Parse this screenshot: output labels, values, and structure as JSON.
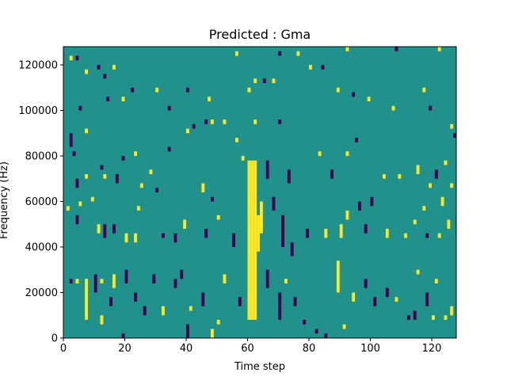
{
  "chart_data": {
    "type": "heatmap",
    "title": "Predicted : Gma",
    "xlabel": "Time step",
    "ylabel": "Frequency (Hz)",
    "xlim": [
      0,
      128
    ],
    "ylim": [
      0,
      128000
    ],
    "x_ticks": [
      0,
      20,
      40,
      60,
      80,
      100,
      120
    ],
    "x_tick_labels": [
      "0",
      "20",
      "40",
      "60",
      "80",
      "100",
      "120"
    ],
    "y_ticks": [
      0,
      20000,
      40000,
      60000,
      80000,
      100000,
      120000
    ],
    "y_tick_labels": [
      "0",
      "20000",
      "40000",
      "60000",
      "80000",
      "100000",
      "120000"
    ],
    "grid": false,
    "colormap": "viridis",
    "background_value": 0,
    "colors": {
      "background": "#21918c",
      "high": "#fde725",
      "low": "#440154"
    },
    "cell_size": {
      "time_steps": 1,
      "frequency_hz": 2000
    },
    "cells": [
      {
        "t": 60,
        "f": 8000,
        "f_end": 78000,
        "v": 1
      },
      {
        "t": 61,
        "f": 8000,
        "f_end": 78000,
        "v": 1
      },
      {
        "t": 62,
        "f": 8000,
        "f_end": 78000,
        "v": 1
      },
      {
        "t": 63,
        "f": 38000,
        "f_end": 54000,
        "v": 1
      },
      {
        "t": 64,
        "f": 46000,
        "f_end": 60000,
        "v": 1
      },
      {
        "t": 66,
        "f": 70000,
        "f_end": 78000,
        "v": -1
      },
      {
        "t": 66,
        "f": 22000,
        "f_end": 30000,
        "v": -1
      },
      {
        "t": 68,
        "f": 56000,
        "f_end": 62000,
        "v": -1
      },
      {
        "t": 70,
        "f": 14000,
        "f_end": 20000,
        "v": -1
      },
      {
        "t": 71,
        "f": 40000,
        "f_end": 54000,
        "v": -1
      },
      {
        "t": 89,
        "f": 20000,
        "f_end": 34000,
        "v": 1
      },
      {
        "t": 2,
        "f": 84000,
        "f_end": 90000,
        "v": -1
      },
      {
        "t": 2,
        "f": 122000,
        "f_end": 124000,
        "v": 1
      },
      {
        "t": 4,
        "f": 122000,
        "f_end": 124000,
        "v": -1
      },
      {
        "t": 7,
        "f": 116000,
        "f_end": 118000,
        "v": 1
      },
      {
        "t": 11,
        "f": 118000,
        "f_end": 120000,
        "v": -1
      },
      {
        "t": 16,
        "f": 118000,
        "f_end": 120000,
        "v": 1
      },
      {
        "t": 13,
        "f": 114000,
        "f_end": 116000,
        "v": -1
      },
      {
        "t": 14,
        "f": 104000,
        "f_end": 106000,
        "v": -1
      },
      {
        "t": 19,
        "f": 104000,
        "f_end": 106000,
        "v": 1
      },
      {
        "t": 22,
        "f": 108000,
        "f_end": 110000,
        "v": -1
      },
      {
        "t": 30,
        "f": 108000,
        "f_end": 110000,
        "v": 1
      },
      {
        "t": 34,
        "f": 100000,
        "f_end": 102000,
        "v": -1
      },
      {
        "t": 40,
        "f": 108000,
        "f_end": 110000,
        "v": -1
      },
      {
        "t": 47,
        "f": 104000,
        "f_end": 106000,
        "v": 1
      },
      {
        "t": 56,
        "f": 124000,
        "f_end": 126000,
        "v": 1
      },
      {
        "t": 60,
        "f": 108000,
        "f_end": 110000,
        "v": 1
      },
      {
        "t": 62,
        "f": 112000,
        "f_end": 114000,
        "v": 1
      },
      {
        "t": 65,
        "f": 112000,
        "f_end": 114000,
        "v": -1
      },
      {
        "t": 70,
        "f": 124000,
        "f_end": 126000,
        "v": -1
      },
      {
        "t": 68,
        "f": 112000,
        "f_end": 114000,
        "v": 1
      },
      {
        "t": 76,
        "f": 124000,
        "f_end": 126000,
        "v": 1
      },
      {
        "t": 80,
        "f": 118000,
        "f_end": 120000,
        "v": 1
      },
      {
        "t": 84,
        "f": 118000,
        "f_end": 120000,
        "v": -1
      },
      {
        "t": 89,
        "f": 108000,
        "f_end": 110000,
        "v": 1
      },
      {
        "t": 92,
        "f": 126000,
        "f_end": 128000,
        "v": 1
      },
      {
        "t": 94,
        "f": 106000,
        "f_end": 108000,
        "v": -1
      },
      {
        "t": 99,
        "f": 104000,
        "f_end": 106000,
        "v": 1
      },
      {
        "t": 107,
        "f": 100000,
        "f_end": 102000,
        "v": 1
      },
      {
        "t": 108,
        "f": 126000,
        "f_end": 128000,
        "v": -1
      },
      {
        "t": 117,
        "f": 108000,
        "f_end": 110000,
        "v": 1
      },
      {
        "t": 119,
        "f": 100000,
        "f_end": 102000,
        "v": -1
      },
      {
        "t": 122,
        "f": 126000,
        "f_end": 128000,
        "v": 1
      },
      {
        "t": 7,
        "f": 90000,
        "f_end": 92000,
        "v": 1
      },
      {
        "t": 5,
        "f": 100000,
        "f_end": 102000,
        "v": -1
      },
      {
        "t": 3,
        "f": 80000,
        "f_end": 82000,
        "v": -1
      },
      {
        "t": 4,
        "f": 66000,
        "f_end": 70000,
        "v": -1
      },
      {
        "t": 7,
        "f": 70000,
        "f_end": 72000,
        "v": 1
      },
      {
        "t": 12,
        "f": 74000,
        "f_end": 76000,
        "v": -1
      },
      {
        "t": 13,
        "f": 70000,
        "f_end": 72000,
        "v": 1
      },
      {
        "t": 17,
        "f": 68000,
        "f_end": 72000,
        "v": -1
      },
      {
        "t": 19,
        "f": 78000,
        "f_end": 80000,
        "v": -1
      },
      {
        "t": 23,
        "f": 80000,
        "f_end": 82000,
        "v": 1
      },
      {
        "t": 25,
        "f": 66000,
        "f_end": 68000,
        "v": 1
      },
      {
        "t": 28,
        "f": 72000,
        "f_end": 74000,
        "v": 1
      },
      {
        "t": 34,
        "f": 82000,
        "f_end": 84000,
        "v": -1
      },
      {
        "t": 40,
        "f": 90000,
        "f_end": 92000,
        "v": 1
      },
      {
        "t": 42,
        "f": 92000,
        "f_end": 94000,
        "v": -1
      },
      {
        "t": 46,
        "f": 94000,
        "f_end": 96000,
        "v": -1
      },
      {
        "t": 48,
        "f": 94000,
        "f_end": 96000,
        "v": 1
      },
      {
        "t": 52,
        "f": 94000,
        "f_end": 96000,
        "v": 1
      },
      {
        "t": 56,
        "f": 86000,
        "f_end": 88000,
        "v": 1
      },
      {
        "t": 62,
        "f": 94000,
        "f_end": 96000,
        "v": 1
      },
      {
        "t": 70,
        "f": 94000,
        "f_end": 96000,
        "v": -1
      },
      {
        "t": 58,
        "f": 78000,
        "f_end": 80000,
        "v": 1
      },
      {
        "t": 73,
        "f": 68000,
        "f_end": 74000,
        "v": -1
      },
      {
        "t": 83,
        "f": 80000,
        "f_end": 82000,
        "v": 1
      },
      {
        "t": 87,
        "f": 70000,
        "f_end": 74000,
        "v": -1
      },
      {
        "t": 92,
        "f": 80000,
        "f_end": 82000,
        "v": 1
      },
      {
        "t": 95,
        "f": 86000,
        "f_end": 88000,
        "v": -1
      },
      {
        "t": 104,
        "f": 70000,
        "f_end": 72000,
        "v": 1
      },
      {
        "t": 109,
        "f": 70000,
        "f_end": 72000,
        "v": 1
      },
      {
        "t": 115,
        "f": 72000,
        "f_end": 76000,
        "v": 1
      },
      {
        "t": 119,
        "f": 66000,
        "f_end": 68000,
        "v": 1
      },
      {
        "t": 121,
        "f": 70000,
        "f_end": 74000,
        "v": -1
      },
      {
        "t": 124,
        "f": 76000,
        "f_end": 78000,
        "v": 1
      },
      {
        "t": 126,
        "f": 66000,
        "f_end": 68000,
        "v": 1
      },
      {
        "t": 127,
        "f": 88000,
        "f_end": 90000,
        "v": -1
      },
      {
        "t": 126,
        "f": 92000,
        "f_end": 94000,
        "v": 1
      },
      {
        "t": 1,
        "f": 56000,
        "f_end": 58000,
        "v": 1
      },
      {
        "t": 4,
        "f": 50000,
        "f_end": 54000,
        "v": -1
      },
      {
        "t": 5,
        "f": 58000,
        "f_end": 60000,
        "v": 1
      },
      {
        "t": 9,
        "f": 60000,
        "f_end": 62000,
        "v": 1
      },
      {
        "t": 11,
        "f": 46000,
        "f_end": 50000,
        "v": 1
      },
      {
        "t": 13,
        "f": 44000,
        "f_end": 50000,
        "v": -1
      },
      {
        "t": 16,
        "f": 46000,
        "f_end": 50000,
        "v": -1
      },
      {
        "t": 20,
        "f": 42000,
        "f_end": 46000,
        "v": 1
      },
      {
        "t": 23,
        "f": 42000,
        "f_end": 46000,
        "v": 1
      },
      {
        "t": 24,
        "f": 56000,
        "f_end": 58000,
        "v": 1
      },
      {
        "t": 30,
        "f": 64000,
        "f_end": 66000,
        "v": -1
      },
      {
        "t": 32,
        "f": 44000,
        "f_end": 46000,
        "v": -1
      },
      {
        "t": 36,
        "f": 42000,
        "f_end": 46000,
        "v": -1
      },
      {
        "t": 39,
        "f": 48000,
        "f_end": 52000,
        "v": 1
      },
      {
        "t": 45,
        "f": 64000,
        "f_end": 68000,
        "v": 1
      },
      {
        "t": 46,
        "f": 44000,
        "f_end": 48000,
        "v": -1
      },
      {
        "t": 48,
        "f": 60000,
        "f_end": 62000,
        "v": -1
      },
      {
        "t": 50,
        "f": 52000,
        "f_end": 54000,
        "v": 1
      },
      {
        "t": 55,
        "f": 40000,
        "f_end": 46000,
        "v": -1
      },
      {
        "t": 74,
        "f": 36000,
        "f_end": 42000,
        "v": -1
      },
      {
        "t": 79,
        "f": 44000,
        "f_end": 48000,
        "v": -1
      },
      {
        "t": 85,
        "f": 44000,
        "f_end": 48000,
        "v": 1
      },
      {
        "t": 90,
        "f": 44000,
        "f_end": 50000,
        "v": 1
      },
      {
        "t": 92,
        "f": 52000,
        "f_end": 56000,
        "v": 1
      },
      {
        "t": 96,
        "f": 56000,
        "f_end": 60000,
        "v": -1
      },
      {
        "t": 98,
        "f": 46000,
        "f_end": 50000,
        "v": -1
      },
      {
        "t": 100,
        "f": 58000,
        "f_end": 62000,
        "v": -1
      },
      {
        "t": 105,
        "f": 44000,
        "f_end": 48000,
        "v": 1
      },
      {
        "t": 111,
        "f": 44000,
        "f_end": 46000,
        "v": 1
      },
      {
        "t": 114,
        "f": 50000,
        "f_end": 52000,
        "v": 1
      },
      {
        "t": 117,
        "f": 56000,
        "f_end": 58000,
        "v": 1
      },
      {
        "t": 118,
        "f": 44000,
        "f_end": 46000,
        "v": -1
      },
      {
        "t": 122,
        "f": 44000,
        "f_end": 46000,
        "v": 1
      },
      {
        "t": 123,
        "f": 58000,
        "f_end": 62000,
        "v": 1
      },
      {
        "t": 125,
        "f": 48000,
        "f_end": 52000,
        "v": 1
      },
      {
        "t": 2,
        "f": 24000,
        "f_end": 26000,
        "v": -1
      },
      {
        "t": 4,
        "f": 24000,
        "f_end": 26000,
        "v": 1
      },
      {
        "t": 7,
        "f": 8000,
        "f_end": 26000,
        "v": 1
      },
      {
        "t": 10,
        "f": 20000,
        "f_end": 28000,
        "v": -1
      },
      {
        "t": 12,
        "f": 24000,
        "f_end": 26000,
        "v": 1
      },
      {
        "t": 12,
        "f": 6000,
        "f_end": 10000,
        "v": 1
      },
      {
        "t": 15,
        "f": 14000,
        "f_end": 18000,
        "v": -1
      },
      {
        "t": 16,
        "f": 22000,
        "f_end": 28000,
        "v": 1
      },
      {
        "t": 19,
        "f": 0,
        "f_end": 2000,
        "v": -1
      },
      {
        "t": 20,
        "f": 24000,
        "f_end": 30000,
        "v": -1
      },
      {
        "t": 23,
        "f": 16000,
        "f_end": 20000,
        "v": -1
      },
      {
        "t": 26,
        "f": 10000,
        "f_end": 14000,
        "v": -1
      },
      {
        "t": 29,
        "f": 24000,
        "f_end": 28000,
        "v": -1
      },
      {
        "t": 32,
        "f": 10000,
        "f_end": 14000,
        "v": 1
      },
      {
        "t": 36,
        "f": 22000,
        "f_end": 26000,
        "v": -1
      },
      {
        "t": 38,
        "f": 26000,
        "f_end": 30000,
        "v": -1
      },
      {
        "t": 40,
        "f": 0,
        "f_end": 6000,
        "v": -1
      },
      {
        "t": 41,
        "f": 12000,
        "f_end": 14000,
        "v": 1
      },
      {
        "t": 45,
        "f": 14000,
        "f_end": 20000,
        "v": -1
      },
      {
        "t": 48,
        "f": 0,
        "f_end": 4000,
        "v": 1
      },
      {
        "t": 50,
        "f": 6000,
        "f_end": 8000,
        "v": 1
      },
      {
        "t": 52,
        "f": 24000,
        "f_end": 28000,
        "v": 1
      },
      {
        "t": 57,
        "f": 14000,
        "f_end": 18000,
        "v": -1
      },
      {
        "t": 70,
        "f": 8000,
        "f_end": 14000,
        "v": -1
      },
      {
        "t": 72,
        "f": 24000,
        "f_end": 26000,
        "v": 1
      },
      {
        "t": 75,
        "f": 14000,
        "f_end": 18000,
        "v": -1
      },
      {
        "t": 78,
        "f": 6000,
        "f_end": 8000,
        "v": -1
      },
      {
        "t": 82,
        "f": 2000,
        "f_end": 4000,
        "v": -1
      },
      {
        "t": 85,
        "f": 0,
        "f_end": 2000,
        "v": -1
      },
      {
        "t": 91,
        "f": 4000,
        "f_end": 6000,
        "v": 1
      },
      {
        "t": 94,
        "f": 16000,
        "f_end": 20000,
        "v": 1
      },
      {
        "t": 98,
        "f": 22000,
        "f_end": 26000,
        "v": -1
      },
      {
        "t": 101,
        "f": 14000,
        "f_end": 18000,
        "v": -1
      },
      {
        "t": 105,
        "f": 18000,
        "f_end": 22000,
        "v": -1
      },
      {
        "t": 108,
        "f": 16000,
        "f_end": 18000,
        "v": 1
      },
      {
        "t": 112,
        "f": 8000,
        "f_end": 10000,
        "v": -1
      },
      {
        "t": 114,
        "f": 8000,
        "f_end": 12000,
        "v": -1
      },
      {
        "t": 115,
        "f": 28000,
        "f_end": 30000,
        "v": 1
      },
      {
        "t": 118,
        "f": 14000,
        "f_end": 20000,
        "v": -1
      },
      {
        "t": 120,
        "f": 8000,
        "f_end": 10000,
        "v": 1
      },
      {
        "t": 121,
        "f": 24000,
        "f_end": 26000,
        "v": 1
      },
      {
        "t": 124,
        "f": 8000,
        "f_end": 10000,
        "v": 1
      },
      {
        "t": 126,
        "f": 10000,
        "f_end": 14000,
        "v": 1
      }
    ]
  }
}
